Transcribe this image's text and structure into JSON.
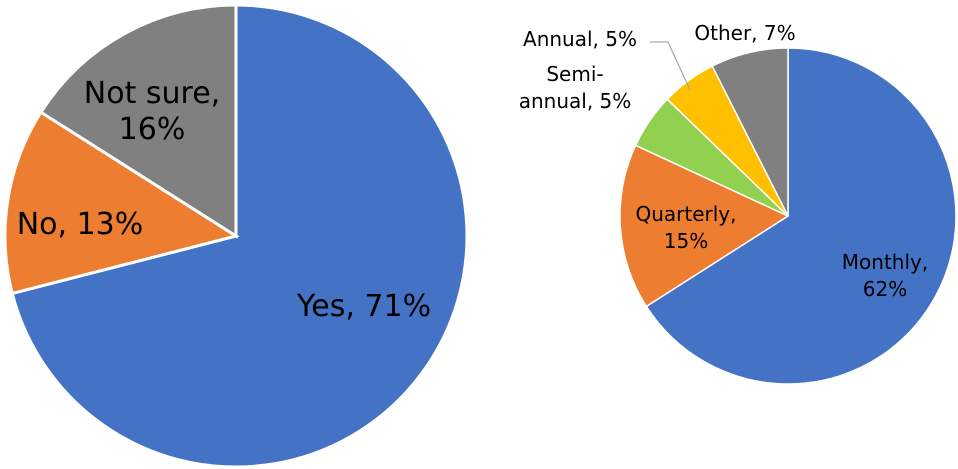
{
  "chart_data": [
    {
      "type": "pie",
      "categories": [
        "Yes",
        "No",
        "Not sure"
      ],
      "values": [
        71,
        13,
        16
      ],
      "colors": [
        "#4472C4",
        "#ED7D31",
        "#808080"
      ],
      "labels": [
        {
          "line1": "Yes, 71%",
          "line2": ""
        },
        {
          "line1": "No, 13%",
          "line2": ""
        },
        {
          "line1": "Not sure,",
          "line2": "16%"
        }
      ]
    },
    {
      "type": "pie",
      "categories": [
        "Monthly",
        "Quarterly",
        "Semi-annual",
        "Annual",
        "Other"
      ],
      "values": [
        62,
        15,
        5,
        5,
        7
      ],
      "colors": [
        "#4472C4",
        "#ED7D31",
        "#92D050",
        "#FFC000",
        "#808080"
      ],
      "labels": [
        {
          "line1": "Monthly,",
          "line2": "62%"
        },
        {
          "line1": "Quarterly,",
          "line2": "15%"
        },
        {
          "line1": "Semi-",
          "line2": "annual, 5%"
        },
        {
          "line1": "Annual, 5%",
          "line2": ""
        },
        {
          "line1": "Other, 7%",
          "line2": ""
        }
      ]
    }
  ]
}
